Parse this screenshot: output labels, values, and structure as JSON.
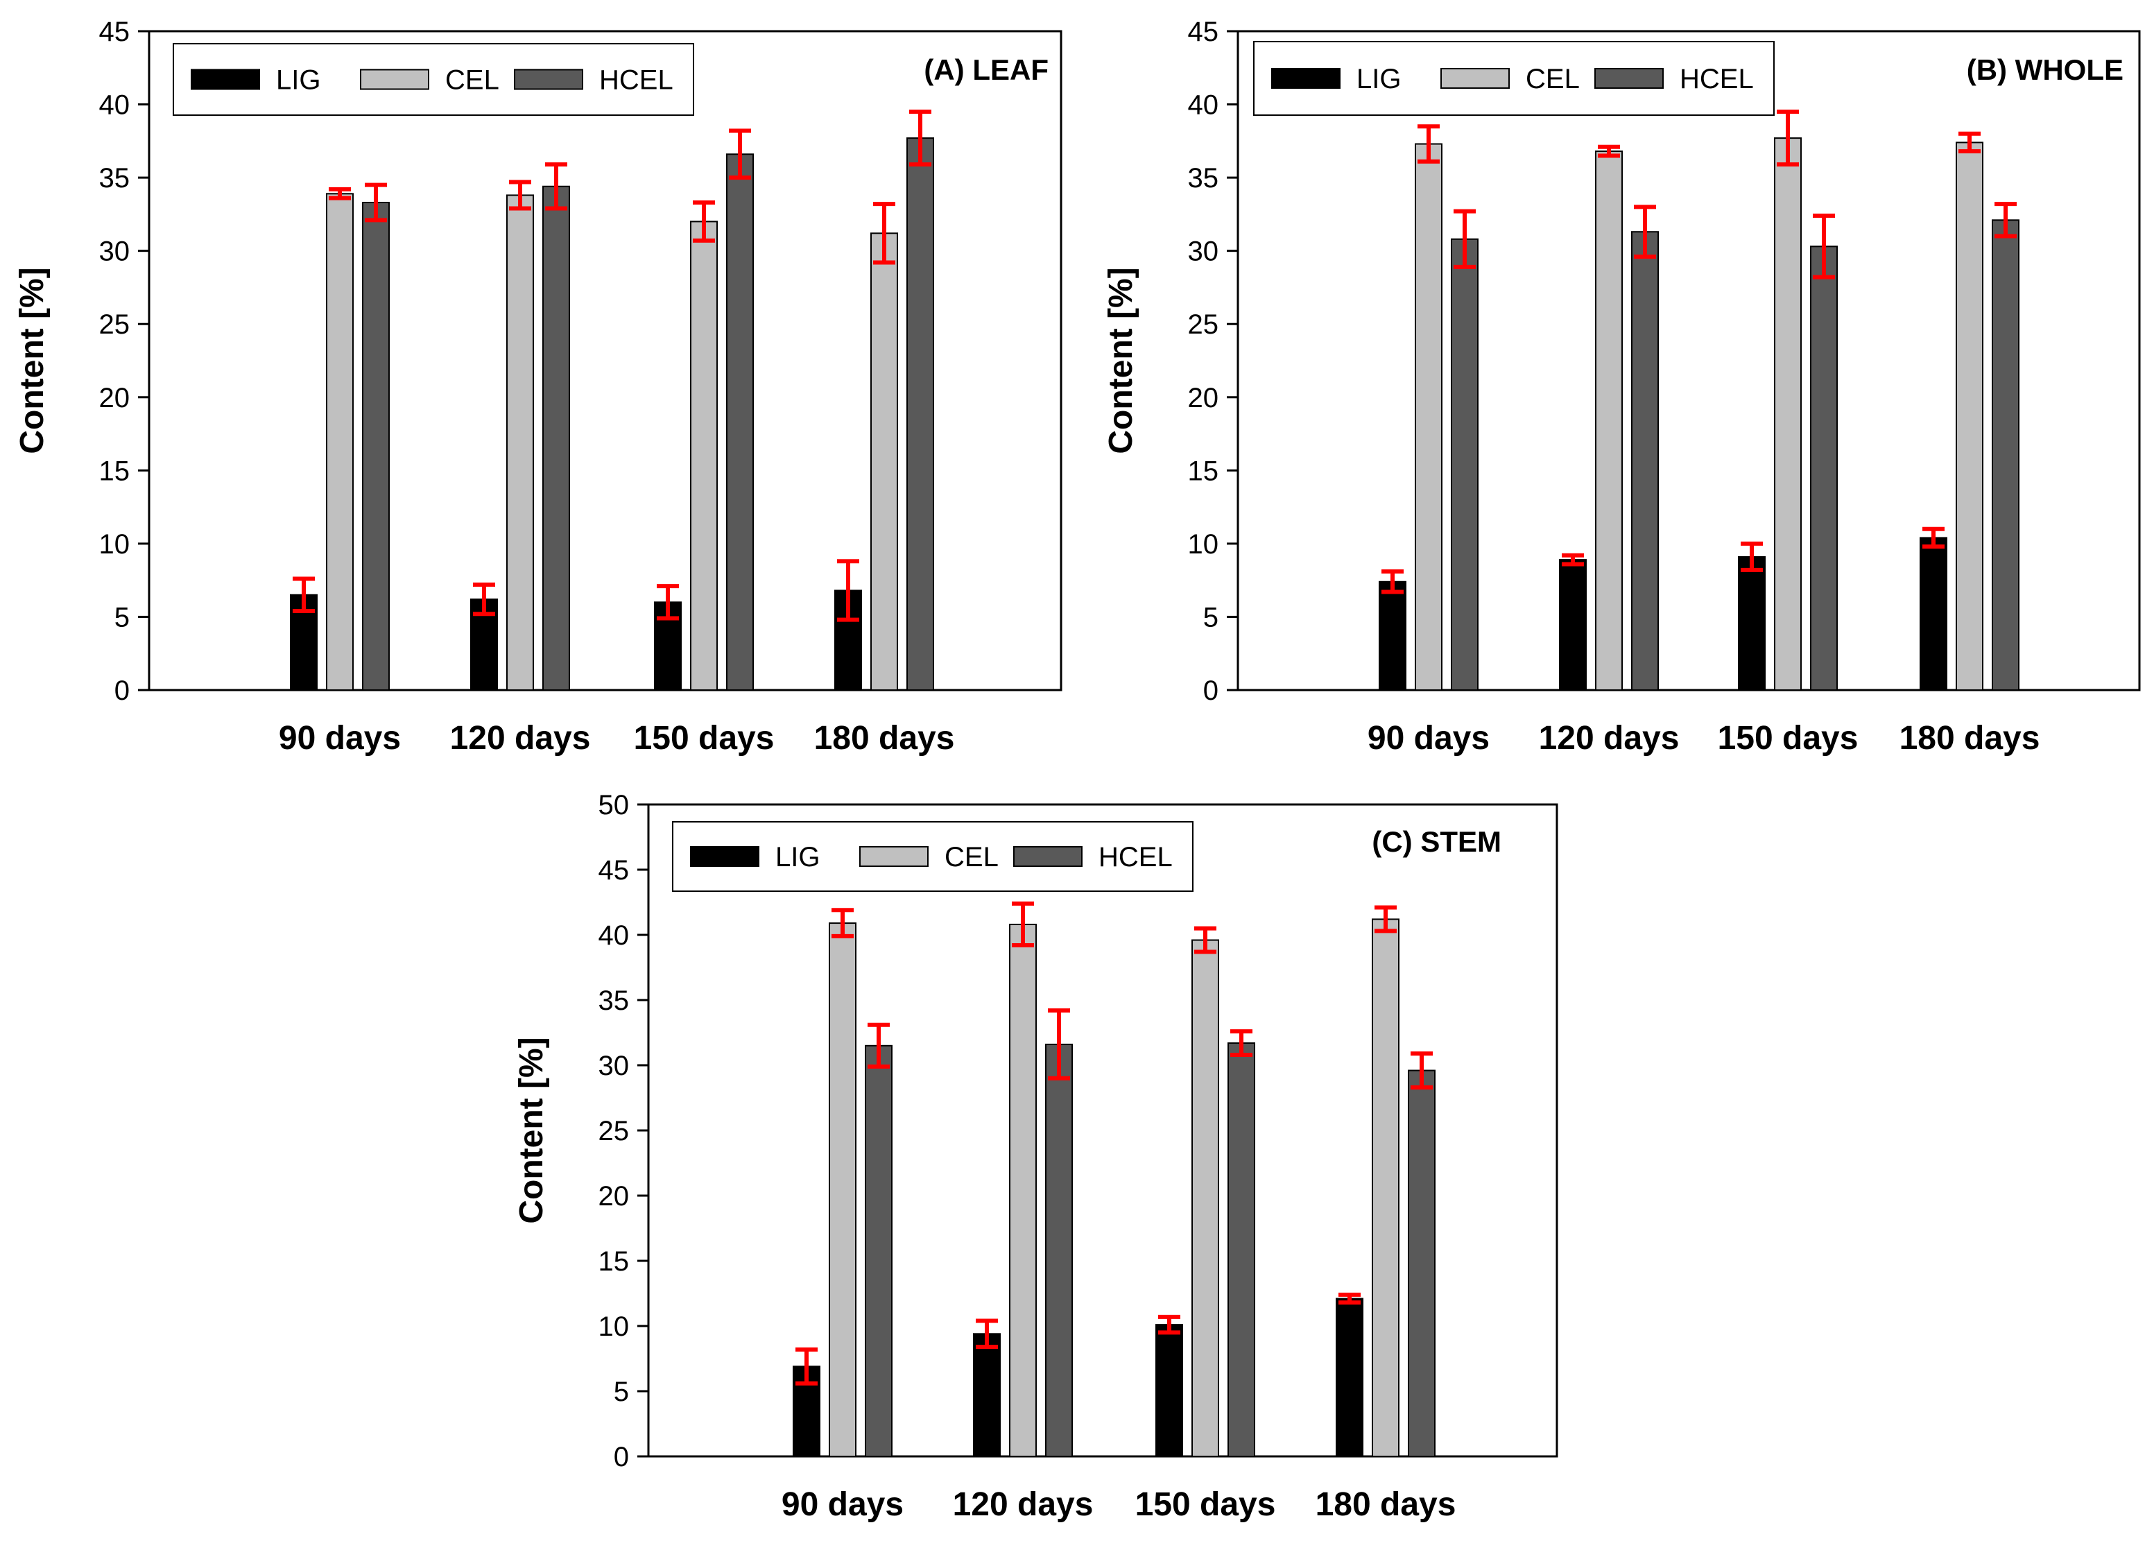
{
  "chart_data": [
    {
      "type": "bar",
      "title": "(A) LEAF",
      "xlabel": "",
      "ylabel": "Content [%]",
      "ylim": [
        0,
        45
      ],
      "yticks": [
        0,
        5,
        10,
        15,
        20,
        25,
        30,
        35,
        40,
        45
      ],
      "categories": [
        "90 days",
        "120 days",
        "150 days",
        "180 days"
      ],
      "legend_position": "top-left",
      "series": [
        {
          "name": "LIG",
          "values": [
            6.5,
            6.2,
            6.0,
            6.8
          ],
          "errors": [
            1.1,
            1.0,
            1.1,
            2.0
          ],
          "color": "#000000"
        },
        {
          "name": "CEL",
          "values": [
            33.9,
            33.8,
            32.0,
            31.2
          ],
          "errors": [
            0.3,
            0.9,
            1.3,
            2.0
          ],
          "color": "#c0c0c0"
        },
        {
          "name": "HCEL",
          "values": [
            33.3,
            34.4,
            36.6,
            37.7
          ],
          "errors": [
            1.2,
            1.5,
            1.6,
            1.8
          ],
          "color": "#595959"
        }
      ],
      "error_bar_color": "#ff0000"
    },
    {
      "type": "bar",
      "title": "(B) WHOLE",
      "xlabel": "",
      "ylabel": "Content [%]",
      "ylim": [
        0,
        45
      ],
      "yticks": [
        0,
        5,
        10,
        15,
        20,
        25,
        30,
        35,
        40,
        45
      ],
      "categories": [
        "90 days",
        "120 days",
        "150 days",
        "180 days"
      ],
      "legend_position": "top-left",
      "series": [
        {
          "name": "LIG",
          "values": [
            7.4,
            8.9,
            9.1,
            10.4
          ],
          "errors": [
            0.7,
            0.3,
            0.9,
            0.6
          ],
          "color": "#000000"
        },
        {
          "name": "CEL",
          "values": [
            37.3,
            36.8,
            37.7,
            37.4
          ],
          "errors": [
            1.2,
            0.3,
            1.8,
            0.6
          ],
          "color": "#c0c0c0"
        },
        {
          "name": "HCEL",
          "values": [
            30.8,
            31.3,
            30.3,
            32.1
          ],
          "errors": [
            1.9,
            1.7,
            2.1,
            1.1
          ],
          "color": "#595959"
        }
      ],
      "error_bar_color": "#ff0000"
    },
    {
      "type": "bar",
      "title": "(C) STEM",
      "xlabel": "",
      "ylabel": "Content [%]",
      "ylim": [
        0,
        50
      ],
      "yticks": [
        0,
        5,
        10,
        15,
        20,
        25,
        30,
        35,
        40,
        45,
        50
      ],
      "categories": [
        "90 days",
        "120 days",
        "150 days",
        "180 days"
      ],
      "legend_position": "top-left",
      "series": [
        {
          "name": "LIG",
          "values": [
            6.9,
            9.4,
            10.1,
            12.1
          ],
          "errors": [
            1.3,
            1.0,
            0.6,
            0.3
          ],
          "color": "#000000"
        },
        {
          "name": "CEL",
          "values": [
            40.9,
            40.8,
            39.6,
            41.2
          ],
          "errors": [
            1.0,
            1.6,
            0.9,
            0.9
          ],
          "color": "#c0c0c0"
        },
        {
          "name": "HCEL",
          "values": [
            31.5,
            31.6,
            31.7,
            29.6
          ],
          "errors": [
            1.6,
            2.6,
            0.9,
            1.3
          ],
          "color": "#595959"
        }
      ],
      "error_bar_color": "#ff0000"
    }
  ]
}
